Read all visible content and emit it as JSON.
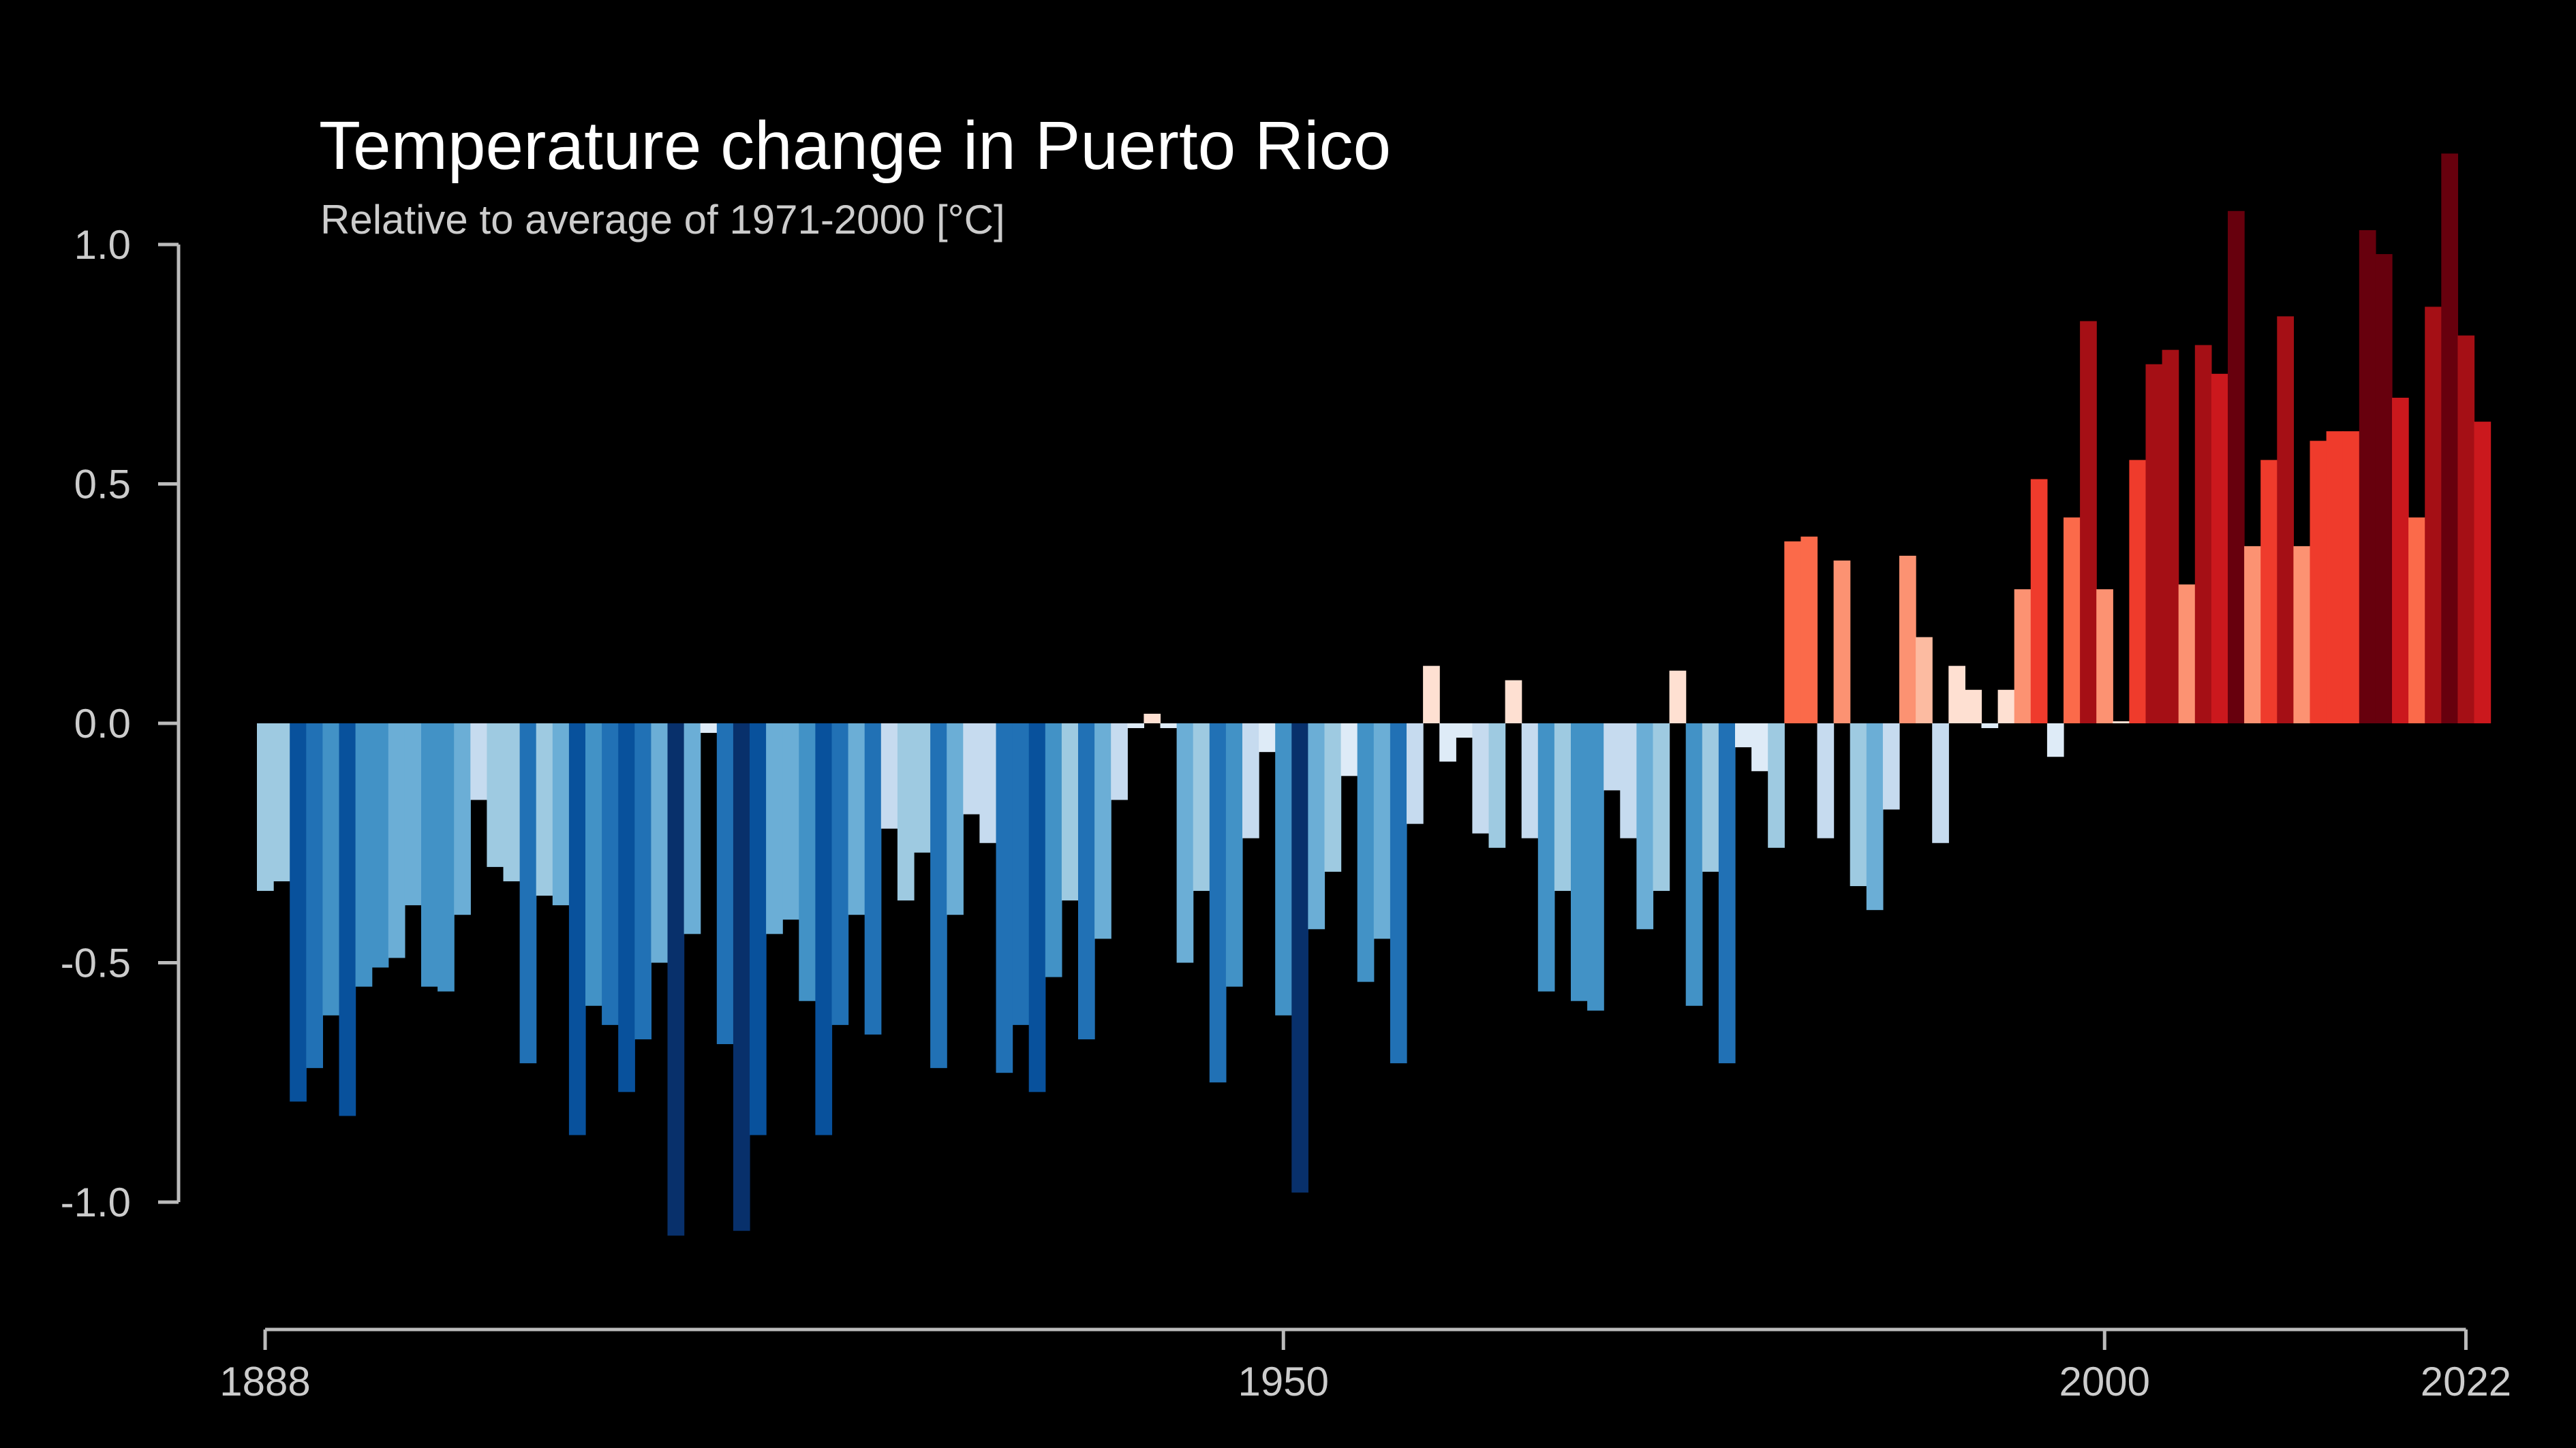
{
  "chart_data": {
    "type": "bar",
    "title": "Temperature change in Puerto Rico",
    "subtitle": "Relative to average of 1971-2000  [°C]",
    "xlabel": "",
    "ylabel": "",
    "x_start": 1888,
    "x_end": 2022,
    "ylim": [
      -1.2,
      1.2
    ],
    "y_ticks": [
      1.0,
      0.5,
      0.0,
      -0.5,
      -1.0
    ],
    "y_tick_labels": [
      "1.0",
      "0.5",
      "0.0",
      "-0.5",
      "-1.0"
    ],
    "x_ticks": [
      1888,
      1950,
      2000,
      2022
    ],
    "x_tick_labels": [
      "1888",
      "1950",
      "2000",
      "2022"
    ],
    "grid": false,
    "legend": "none",
    "color_scale": {
      "min": -1.0,
      "max": 1.0,
      "stops": [
        "#08306b",
        "#08519c",
        "#2171b5",
        "#4292c6",
        "#6baed6",
        "#9ecae1",
        "#c6dbef",
        "#deebf7",
        "#fee0d2",
        "#fcbba1",
        "#fc9272",
        "#fb6a4a",
        "#ef3b2c",
        "#cb181d",
        "#a50f15",
        "#67000d"
      ]
    },
    "series": [
      {
        "name": "Temperature anomaly",
        "values": [
          -0.35,
          -0.33,
          -0.79,
          -0.72,
          -0.61,
          -0.82,
          -0.55,
          -0.51,
          -0.49,
          -0.38,
          -0.55,
          -0.56,
          -0.4,
          -0.16,
          -0.3,
          -0.33,
          -0.71,
          -0.36,
          -0.38,
          -0.86,
          -0.59,
          -0.63,
          -0.77,
          -0.66,
          -0.5,
          -1.07,
          -0.44,
          -0.02,
          -0.67,
          -1.06,
          -0.86,
          -0.44,
          -0.41,
          -0.58,
          -0.86,
          -0.63,
          -0.4,
          -0.65,
          -0.22,
          -0.37,
          -0.27,
          -0.72,
          -0.4,
          -0.19,
          -0.25,
          -0.73,
          -0.63,
          -0.77,
          -0.53,
          -0.37,
          -0.66,
          -0.45,
          -0.16,
          -0.01,
          0.02,
          -0.01,
          -0.5,
          -0.35,
          -0.75,
          -0.55,
          -0.24,
          -0.06,
          -0.61,
          -0.98,
          -0.43,
          -0.31,
          -0.11,
          -0.54,
          -0.45,
          -0.71,
          -0.21,
          0.12,
          -0.08,
          -0.03,
          -0.23,
          -0.26,
          0.09,
          -0.24,
          -0.56,
          -0.35,
          -0.58,
          -0.6,
          -0.14,
          -0.24,
          -0.43,
          -0.35,
          0.11,
          -0.59,
          -0.31,
          -0.71,
          -0.05,
          -0.1,
          -0.26,
          0.38,
          0.39,
          -0.24,
          0.34,
          -0.34,
          -0.39,
          -0.18,
          0.35,
          0.18,
          -0.25,
          0.12,
          0.07,
          -0.01,
          0.07,
          0.28,
          0.51,
          -0.07,
          0.43,
          0.84,
          0.28,
          0.0,
          0.55,
          0.75,
          0.78,
          0.29,
          0.79,
          0.73,
          1.07,
          0.37,
          0.55,
          0.85,
          0.37,
          0.59,
          0.61,
          0.61,
          1.03,
          0.98,
          0.68,
          0.43,
          0.87,
          1.19,
          0.81,
          0.63
        ]
      }
    ]
  }
}
